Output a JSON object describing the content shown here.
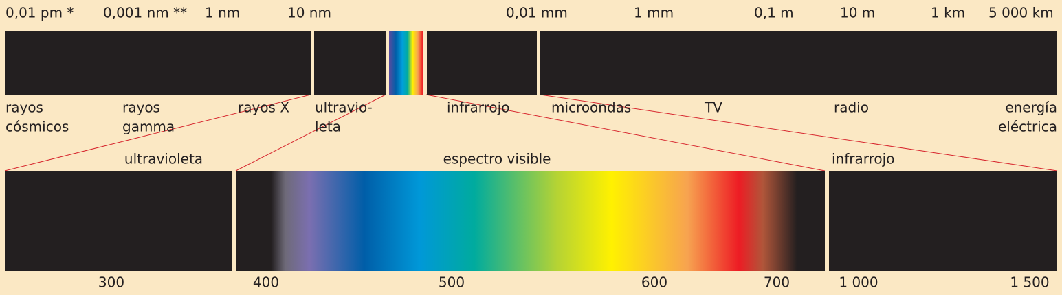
{
  "top_scale": [
    "0,01 pm *",
    "0,001 nm **",
    "1 nm",
    "10 nm",
    "0,01 mm",
    "1 mm",
    "0,1 m",
    "10 m",
    "1 km",
    "5 000 km"
  ],
  "bands": [
    [
      "rayos",
      "cósmicos"
    ],
    [
      "rayos",
      "gamma"
    ],
    [
      "rayos X"
    ],
    [
      "ultravio-",
      "leta"
    ],
    [
      "infrarrojo"
    ],
    [
      "microondas"
    ],
    [
      "TV"
    ],
    [
      "radio"
    ],
    [
      "energía",
      "eléctrica"
    ]
  ],
  "detail": {
    "labels": [
      "ultravioleta",
      "espectro visible",
      "infrarrojo"
    ],
    "scale": [
      "300",
      "400",
      "500",
      "600",
      "700",
      "1 000",
      "1 500"
    ]
  }
}
